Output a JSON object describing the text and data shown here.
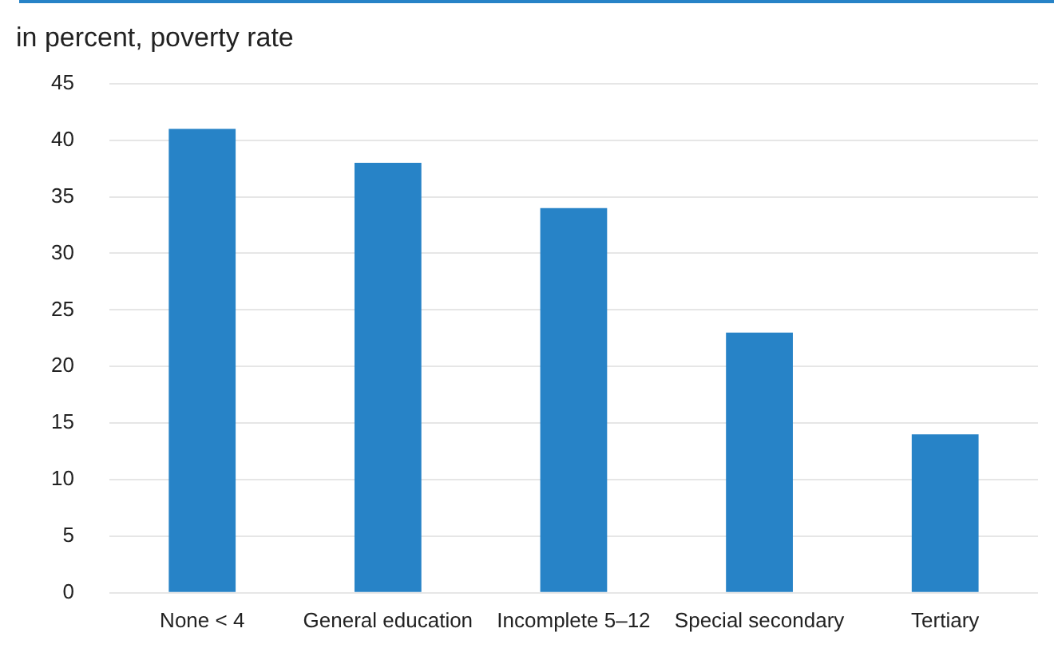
{
  "chart_data": {
    "type": "bar",
    "title": "in percent, poverty rate",
    "categories": [
      "None < 4",
      "General education",
      "Incomplete 5–12",
      "Special secondary",
      "Tertiary"
    ],
    "values": [
      41,
      38,
      34,
      23,
      14
    ],
    "color": "#2783c7",
    "ylim": [
      0,
      45
    ],
    "yticks": [
      0,
      5,
      10,
      15,
      20,
      25,
      30,
      35,
      40,
      45
    ],
    "grid": "y"
  }
}
